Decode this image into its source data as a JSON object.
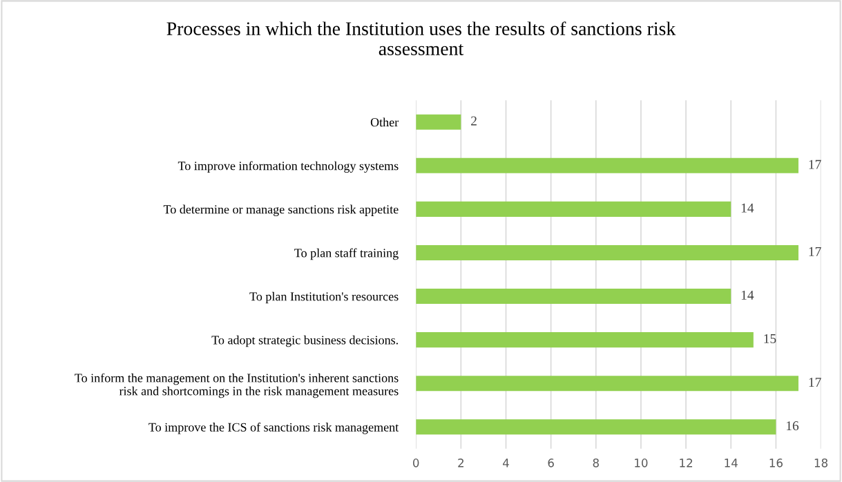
{
  "chart_data": {
    "type": "bar",
    "orientation": "horizontal",
    "title": "Processes in which the Institution uses the results of sanctions risk\nassessment",
    "categories": [
      "Other",
      "To improve information technology systems",
      "To determine or manage sanctions risk appetite",
      "To plan staff training",
      "To plan Institution's resources",
      "To adopt strategic business decisions.",
      "To inform the management on the Institution's inherent sanctions\nrisk and shortcomings in the risk management measures",
      "To improve the ICS of sanctions risk management"
    ],
    "values": [
      2,
      17,
      14,
      17,
      14,
      15,
      17,
      16
    ],
    "color": "#92d050",
    "xlim": [
      0,
      18
    ],
    "xticks": [
      0,
      2,
      4,
      6,
      8,
      10,
      12,
      14,
      16,
      18
    ],
    "grid": "x",
    "data_labels": true
  }
}
